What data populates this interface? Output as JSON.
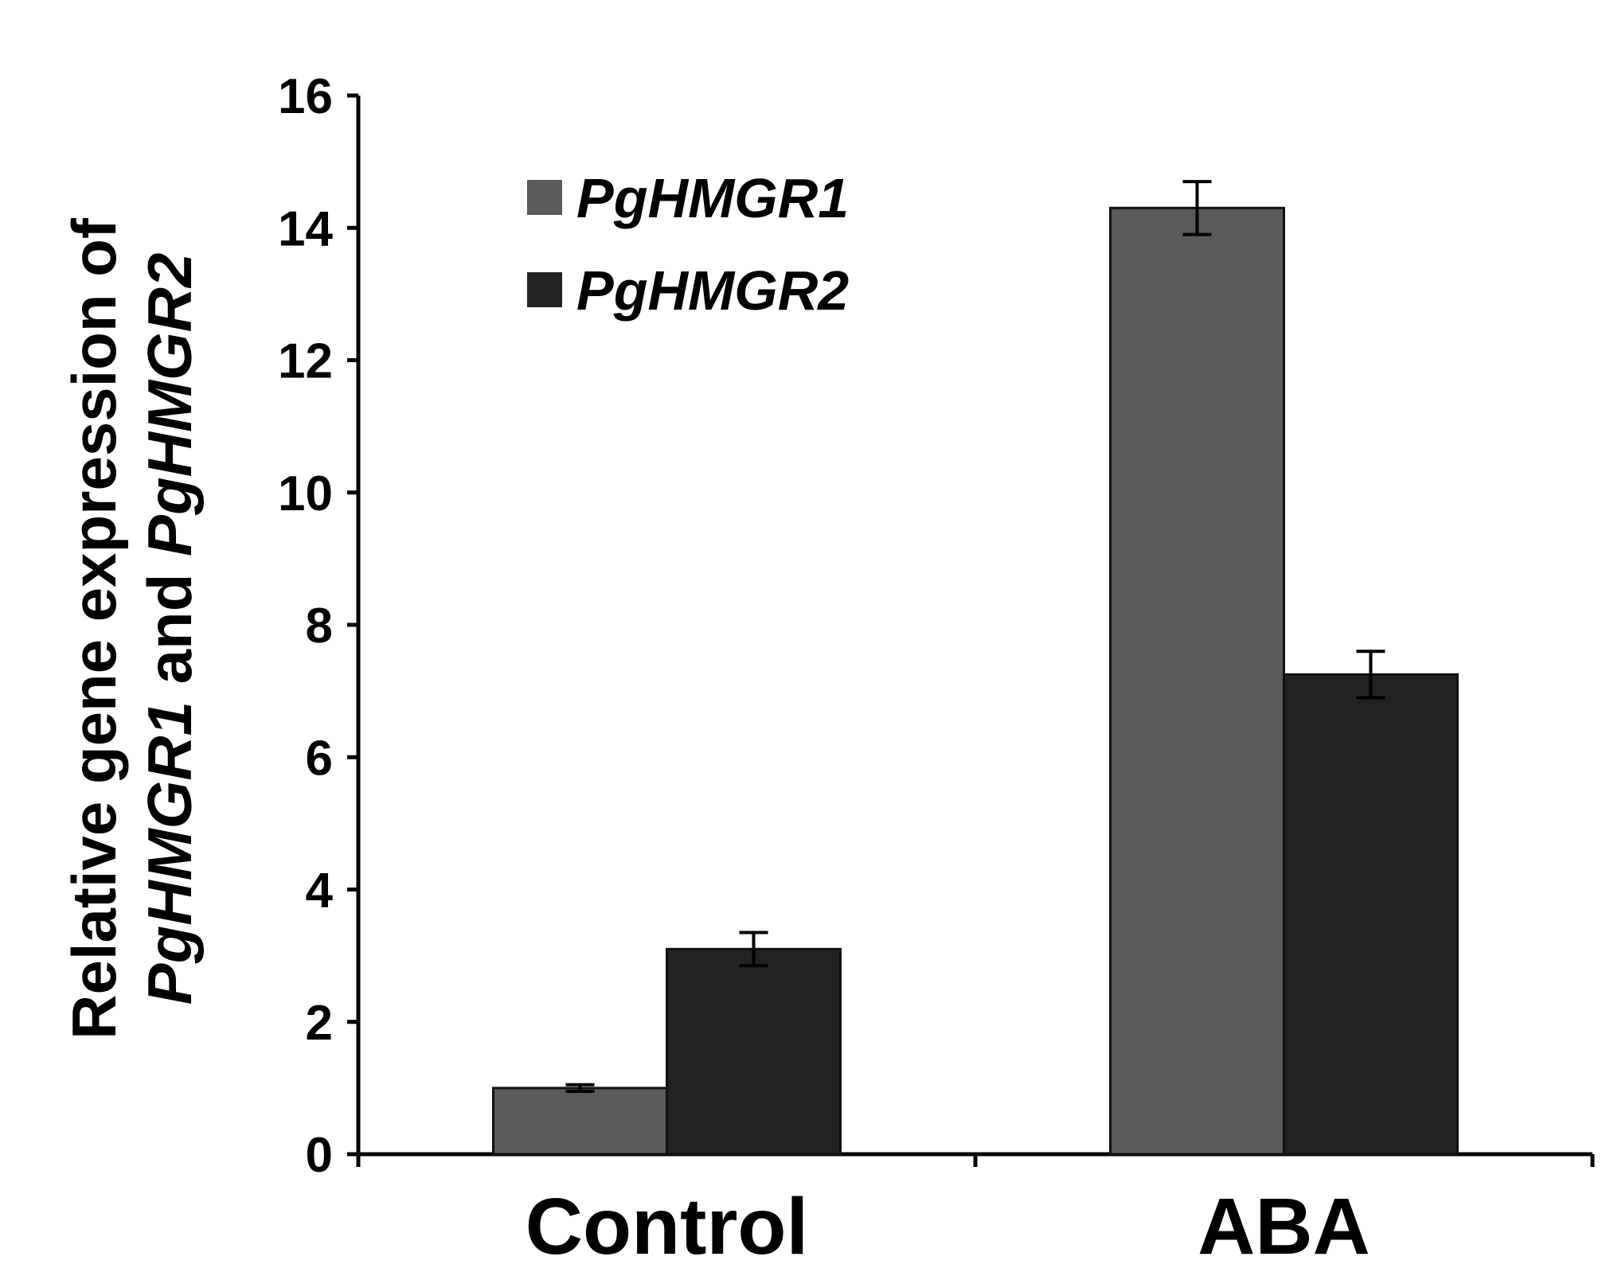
{
  "chart_data": {
    "type": "bar",
    "title": "",
    "xlabel": "",
    "ylabel_line1": "Relative gene expression of",
    "ylabel_line2": [
      {
        "text": "PgHMGR1",
        "italic": true
      },
      {
        "text": " and ",
        "italic": false
      },
      {
        "text": "PgHMGR2",
        "italic": true
      }
    ],
    "categories": [
      "Control",
      "ABA"
    ],
    "ylim": [
      0,
      16
    ],
    "yticks": [
      "0",
      "2",
      "4",
      "6",
      "8",
      "10",
      "12",
      "14",
      "16"
    ],
    "grid": false,
    "legend_position": "top-left",
    "series": [
      {
        "name": "PgHMGR1",
        "color": "#5a5a5a",
        "values": [
          1.0,
          14.3
        ],
        "errors": [
          0.05,
          0.4
        ]
      },
      {
        "name": "PgHMGR2",
        "color": "#222222",
        "values": [
          3.1,
          7.25
        ],
        "errors": [
          0.25,
          0.35
        ]
      }
    ]
  }
}
